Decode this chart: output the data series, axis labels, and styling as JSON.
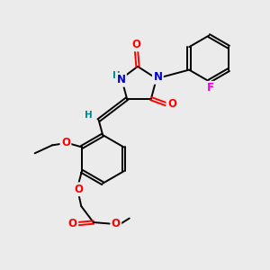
{
  "bg_color": "#ebebeb",
  "bond_color": "#000000",
  "bond_width": 1.4,
  "dbo": 0.055,
  "atom_colors": {
    "O": "#ff0000",
    "N": "#0000cc",
    "F": "#ee00ee",
    "H_teal": "#008888",
    "C": "#000000"
  },
  "fs": 8.5
}
